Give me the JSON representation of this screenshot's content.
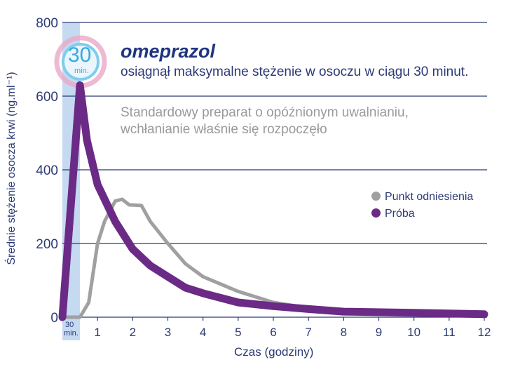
{
  "chart_data": {
    "type": "line",
    "title": "omeprazol",
    "subtitle": "osiągnął maksymalne stężenie w osoczu w ciągu 30 minut.",
    "annotation": "Standardowy preparat o opóźnionym uwalnianiu, wchłanianie właśnie się rozpoczęło",
    "annotation_lines": [
      "Standardowy preparat o opóźnionym uwalnianiu,",
      "wchłanianie właśnie się rozpoczęło"
    ],
    "badge": {
      "value": "30",
      "unit": "min."
    },
    "highlight_label": {
      "line1": "30",
      "line2": "min."
    },
    "xlabel": "Czas (godziny)",
    "ylabel": "Średnie stężenie osocza krwi (ng.ml⁻¹)",
    "xlim": [
      0,
      12
    ],
    "ylim": [
      0,
      800
    ],
    "xticks": [
      "1",
      "2",
      "3",
      "4",
      "5",
      "6",
      "7",
      "8",
      "9",
      "10",
      "11",
      "12"
    ],
    "yticks": [
      "0",
      "200",
      "400",
      "600",
      "800"
    ],
    "grid": true,
    "legend_position": "right",
    "series": [
      {
        "name": "Punkt odniesienia",
        "color": "#a0a0a0",
        "x": [
          0,
          0.5,
          0.75,
          1,
          1.2,
          1.5,
          1.7,
          1.9,
          2.25,
          2.5,
          3,
          3.5,
          4,
          5,
          6,
          7,
          8,
          10,
          12
        ],
        "y": [
          0,
          0,
          40,
          200,
          260,
          315,
          320,
          305,
          303,
          260,
          200,
          145,
          110,
          70,
          40,
          25,
          15,
          12,
          8
        ]
      },
      {
        "name": "Próba",
        "color": "#6b2a86",
        "x": [
          0,
          0.5,
          0.7,
          1,
          1.5,
          2,
          2.5,
          3,
          3.5,
          4,
          5,
          6,
          7,
          8,
          10,
          12
        ],
        "y": [
          0,
          630,
          480,
          360,
          260,
          185,
          140,
          110,
          80,
          65,
          40,
          30,
          22,
          15,
          12,
          8
        ]
      }
    ],
    "colors": {
      "axis_text": "#2b3a75",
      "grid": "#2b3a75",
      "band": "#c5d9f1",
      "title": "#1f3580"
    }
  }
}
